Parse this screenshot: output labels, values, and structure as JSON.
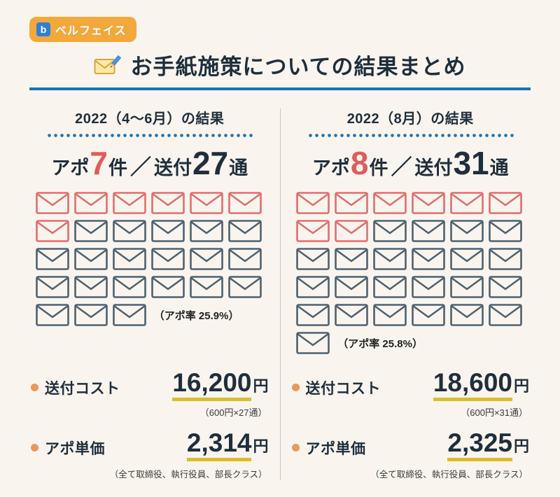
{
  "badge": {
    "logo": "b",
    "label": "ベルフェイス"
  },
  "title": {
    "text": "お手紙施策についての結果まとめ"
  },
  "columns": [
    {
      "header": "2022（4〜6月）の結果",
      "stat": {
        "apo_label": "アポ",
        "apo_value": "7",
        "apo_unit": "件",
        "separator": "／",
        "sent_label": "送付",
        "sent_value": "27",
        "sent_unit": "通"
      },
      "envelopes": {
        "total": 27,
        "red": 7,
        "per_row": 6
      },
      "rate_note": "（アポ率 25.9%）",
      "cost": {
        "label": "送付コスト",
        "value": "16,200",
        "unit": "円",
        "note": "（600円×27通）"
      },
      "unit_price": {
        "label": "アポ単価",
        "value": "2,314",
        "unit": "円",
        "note": "（全て取締役、執行役員、部長クラス）"
      }
    },
    {
      "header": "2022（8月）の結果",
      "stat": {
        "apo_label": "アポ",
        "apo_value": "8",
        "apo_unit": "件",
        "separator": "／",
        "sent_label": "送付",
        "sent_value": "31",
        "sent_unit": "通"
      },
      "envelopes": {
        "total": 31,
        "red": 8,
        "per_row": 6
      },
      "rate_note": "（アポ率 25.8%）",
      "cost": {
        "label": "送付コスト",
        "value": "18,600",
        "unit": "円",
        "note": "（600円×31通）"
      },
      "unit_price": {
        "label": "アポ単価",
        "value": "2,325",
        "unit": "円",
        "note": "（全て取締役、執行役員、部長クラス）"
      }
    }
  ],
  "chart_data": {
    "type": "table",
    "title": "お手紙施策についての結果まとめ",
    "categories": [
      "2022（4〜6月）",
      "2022（8月）"
    ],
    "series": [
      {
        "name": "アポ件数",
        "values": [
          7,
          8
        ]
      },
      {
        "name": "送付通数",
        "values": [
          27,
          31
        ]
      },
      {
        "name": "アポ率(%)",
        "values": [
          25.9,
          25.8
        ]
      },
      {
        "name": "送付コスト(円)",
        "values": [
          16200,
          18600
        ]
      },
      {
        "name": "アポ単価(円)",
        "values": [
          2314,
          2325
        ]
      }
    ]
  },
  "colors": {
    "background": "#f9f5ee",
    "accent_blue": "#1e73b0",
    "badge_orange": "#f3a83c",
    "logo_blue": "#2f7fd6",
    "envelope_red": "#e06e6e",
    "envelope_gray": "#4e6170",
    "underline_yellow": "#dcbd29",
    "bullet_orange": "#e8995c"
  }
}
